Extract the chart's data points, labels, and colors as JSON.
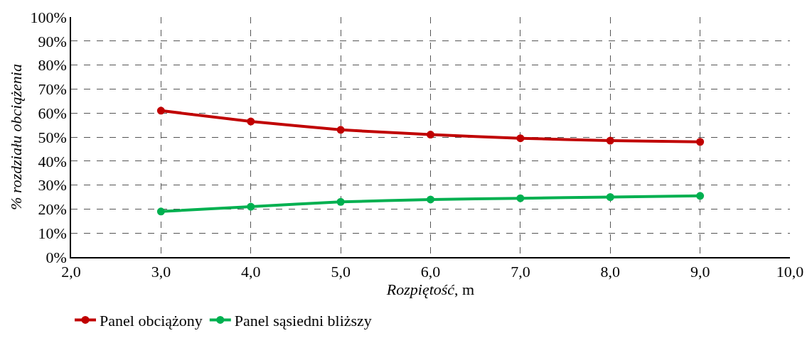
{
  "chart_data": {
    "type": "line",
    "xlabel": "Rozpiętość, m",
    "ylabel": "% rozdziału obciążenia",
    "x": [
      3,
      4,
      5,
      6,
      7,
      8,
      9
    ],
    "series": [
      {
        "name": "Panel obciążony",
        "color": "#c00000",
        "values": [
          61,
          56.5,
          53,
          51,
          49.5,
          48.5,
          48
        ]
      },
      {
        "name": "Panel sąsiedni bliższy",
        "color": "#00b050",
        "values": [
          19,
          21,
          23,
          24,
          24.5,
          25,
          25.5
        ]
      }
    ],
    "xlim": [
      2,
      10
    ],
    "xticks": [
      {
        "value": 2,
        "label": "2,0"
      },
      {
        "value": 3,
        "label": "3,0"
      },
      {
        "value": 4,
        "label": "4,0"
      },
      {
        "value": 5,
        "label": "5,0"
      },
      {
        "value": 6,
        "label": "6,0"
      },
      {
        "value": 7,
        "label": "7,0"
      },
      {
        "value": 8,
        "label": "8,0"
      },
      {
        "value": 9,
        "label": "9,0"
      },
      {
        "value": 10,
        "label": "10,0"
      }
    ],
    "ylim": [
      0,
      100
    ],
    "yticks": [
      {
        "value": 0,
        "label": "0%"
      },
      {
        "value": 10,
        "label": "10%"
      },
      {
        "value": 20,
        "label": "20%"
      },
      {
        "value": 30,
        "label": "30%"
      },
      {
        "value": 40,
        "label": "40%"
      },
      {
        "value": 50,
        "label": "50%"
      },
      {
        "value": 60,
        "label": "60%"
      },
      {
        "value": 70,
        "label": "70%"
      },
      {
        "value": 80,
        "label": "80%"
      },
      {
        "value": 90,
        "label": "90%"
      },
      {
        "value": 100,
        "label": "100%"
      }
    ],
    "grid": true,
    "legend": "bottom left",
    "marker": "circle",
    "line_style": "solid"
  }
}
